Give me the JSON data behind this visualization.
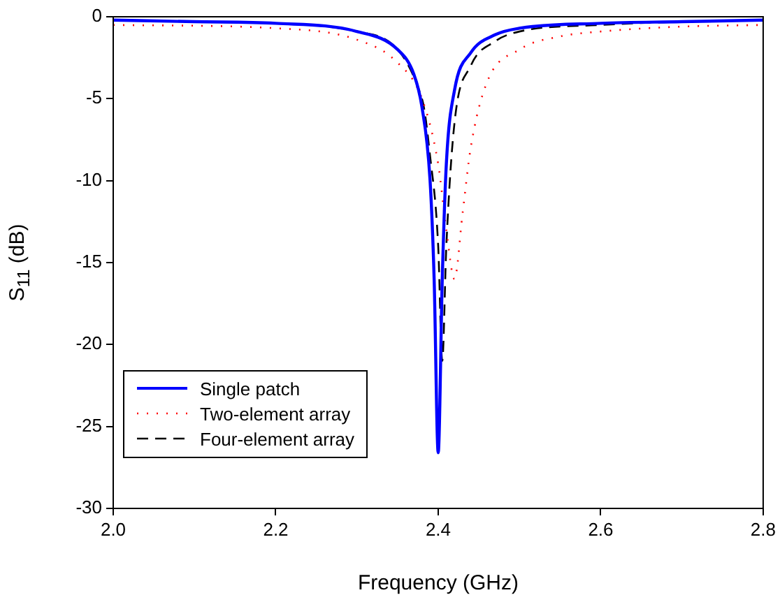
{
  "chart_data": {
    "type": "line",
    "xlabel": "Frequency (GHz)",
    "ylabel": "S$_{11}$ (dB)",
    "xlim": [
      2.0,
      2.8
    ],
    "ylim": [
      -30,
      0
    ],
    "xticks": [
      {
        "value": 2.0,
        "label": "2.0"
      },
      {
        "value": 2.2,
        "label": "2.2"
      },
      {
        "value": 2.4,
        "label": "2.4"
      },
      {
        "value": 2.6,
        "label": "2.6"
      },
      {
        "value": 2.8,
        "label": "2.8"
      }
    ],
    "yticks": [
      -30,
      -25,
      -20,
      -15,
      -10,
      -5,
      0
    ],
    "grid": false,
    "legend": "bottom left",
    "marker": "none",
    "series": [
      {
        "name": "Single patch",
        "color": "#0000ff",
        "line_style": "solid",
        "x": [
          2.0,
          2.1,
          2.2,
          2.3,
          2.35,
          2.37,
          2.38,
          2.39,
          2.395,
          2.4,
          2.405,
          2.41,
          2.42,
          2.44,
          2.47,
          2.5,
          2.6,
          2.7,
          2.8
        ],
        "values": [
          -0.2,
          -0.3,
          -0.4,
          -0.9,
          -2.0,
          -3.5,
          -5.5,
          -10,
          -16,
          -26.6,
          -16,
          -9,
          -4.5,
          -2.2,
          -1.1,
          -0.7,
          -0.4,
          -0.3,
          -0.2
        ]
      },
      {
        "name": "Two-element array",
        "color": "#ff0000",
        "line_style": "dotted",
        "x": [
          2.0,
          2.2,
          2.3,
          2.35,
          2.38,
          2.4,
          2.41,
          2.42,
          2.43,
          2.44,
          2.46,
          2.5,
          2.55,
          2.6,
          2.7,
          2.8
        ],
        "values": [
          -0.5,
          -0.7,
          -1.4,
          -2.8,
          -5,
          -9,
          -13,
          -16,
          -12,
          -8,
          -4,
          -2,
          -1.2,
          -0.9,
          -0.6,
          -0.5
        ]
      },
      {
        "name": "Four-element array",
        "color": "#000000",
        "line_style": "dashed",
        "x": [
          2.0,
          2.1,
          2.2,
          2.3,
          2.38,
          2.39,
          2.4,
          2.405,
          2.41,
          2.42,
          2.44,
          2.47,
          2.5,
          2.6,
          2.7,
          2.8
        ],
        "values": [
          -0.2,
          -0.3,
          -0.4,
          -0.9,
          -5,
          -8.5,
          -14,
          -21,
          -14,
          -6.5,
          -3,
          -1.5,
          -0.9,
          -0.5,
          -0.3,
          -0.2
        ]
      }
    ]
  }
}
